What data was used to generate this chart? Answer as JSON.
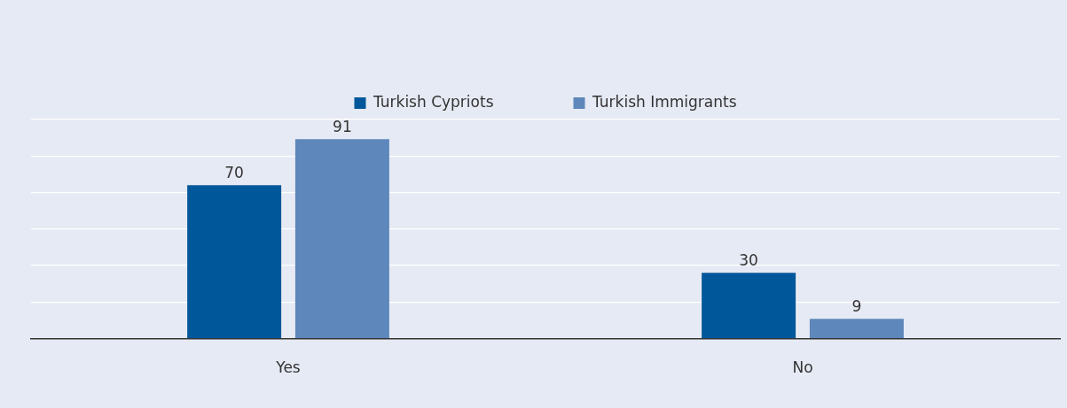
{
  "chart_data": {
    "type": "bar",
    "categories": [
      "Yes",
      "No"
    ],
    "series": [
      {
        "name": "Turkish Cypriots",
        "color": "#00579a",
        "values": [
          70,
          30
        ]
      },
      {
        "name": "Turkish Immigrants",
        "color": "#5e87bb",
        "values": [
          91,
          9
        ]
      }
    ],
    "ylim": [
      0,
      100
    ],
    "yticks": [
      {
        "value": 0,
        "label": null
      },
      {
        "value": 16.67,
        "label": null
      },
      {
        "value": 33.33,
        "label": null
      },
      {
        "value": 50,
        "label": null
      },
      {
        "value": 66.67,
        "label": null
      },
      {
        "value": 83.33,
        "label": null
      },
      {
        "value": 100,
        "label": null
      }
    ],
    "tick_labels": "x",
    "grid": "y",
    "legend": "top",
    "data_labels": true
  }
}
